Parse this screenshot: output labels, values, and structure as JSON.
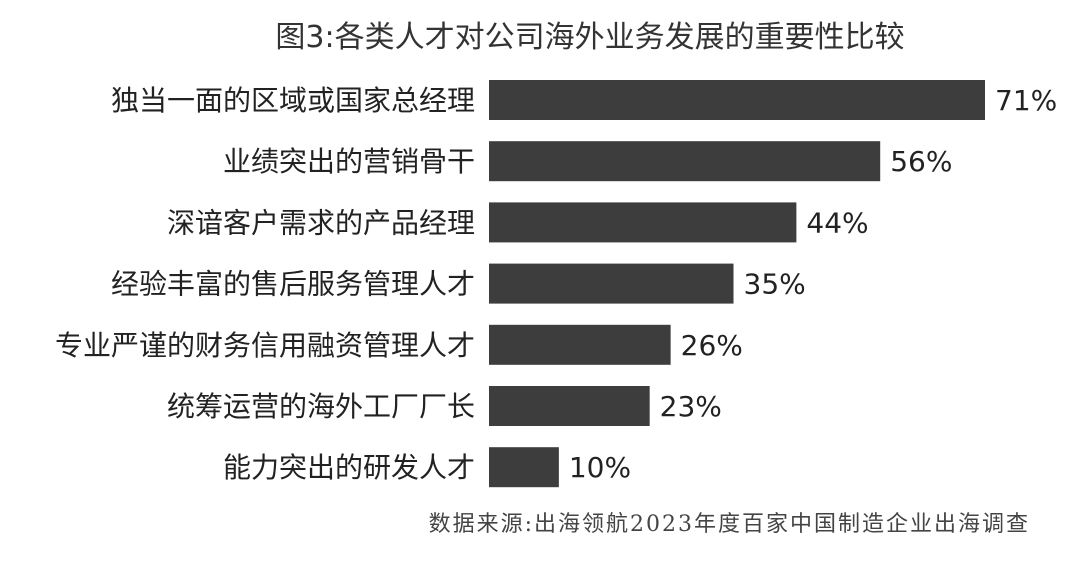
{
  "chart_data": {
    "type": "bar",
    "orientation": "horizontal",
    "title": "图3:各类人才对公司海外业务发展的重要性比较",
    "categories": [
      "独当一面的区域或国家总经理",
      "业绩突出的营销骨干",
      "深谙客户需求的产品经理",
      "经验丰富的售后服务管理人才",
      "专业严谨的财务信用融资管理人才",
      "统筹运营的海外工厂厂长",
      "能力突出的研发人才"
    ],
    "values": [
      71,
      56,
      44,
      35,
      26,
      23,
      10
    ],
    "value_labels": [
      "71%",
      "56%",
      "44%",
      "35%",
      "26%",
      "23%",
      "10%"
    ],
    "unit": "%",
    "xlim": [
      0,
      71
    ],
    "bar_color": "#3d3d3d",
    "grid": false,
    "legend": "none"
  },
  "source_note": "数据来源:出海领航2023年度百家中国制造企业出海调查"
}
